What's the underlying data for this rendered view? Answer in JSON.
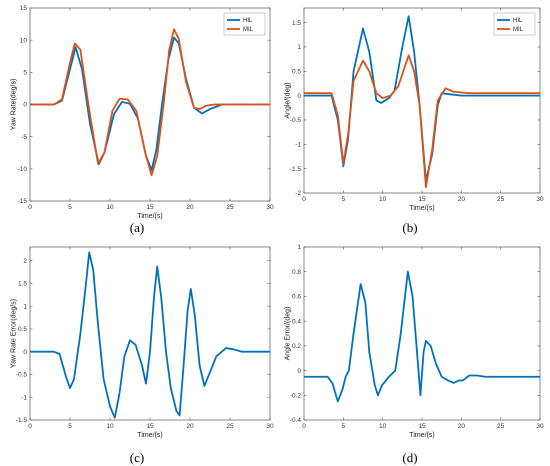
{
  "chart_data": [
    {
      "type": "line",
      "panel_label": "(a)",
      "xlabel": "Time/(s)",
      "ylabel": "Yaw Rate(deg/s)",
      "xlim": [
        0,
        30
      ],
      "ylim": [
        -15,
        15
      ],
      "xticks": [
        "0",
        "5",
        "10",
        "15",
        "20",
        "25",
        "30"
      ],
      "yticks": [
        "-15",
        "-10",
        "-5",
        "0",
        "5",
        "10",
        "15"
      ],
      "legend_position": "top-right",
      "series": [
        {
          "name": "HIL",
          "color": "#0072BD",
          "points": [
            [
              0,
              0
            ],
            [
              3,
              0
            ],
            [
              4,
              0.6
            ],
            [
              5,
              5.5
            ],
            [
              5.7,
              8.9
            ],
            [
              6.5,
              5.5
            ],
            [
              7.5,
              -3
            ],
            [
              8.6,
              -9.3
            ],
            [
              9.3,
              -7.5
            ],
            [
              10.5,
              -1.5
            ],
            [
              11.5,
              0.4
            ],
            [
              12.5,
              0.1
            ],
            [
              13.5,
              -2.2
            ],
            [
              14.5,
              -8
            ],
            [
              15.2,
              -10.2
            ],
            [
              15.8,
              -7
            ],
            [
              16.5,
              0
            ],
            [
              17.3,
              7
            ],
            [
              18,
              10.4
            ],
            [
              18.6,
              9.5
            ],
            [
              19.5,
              4
            ],
            [
              20.5,
              -0.5
            ],
            [
              21.5,
              -1.4
            ],
            [
              22.5,
              -0.7
            ],
            [
              24,
              0
            ],
            [
              30,
              0
            ]
          ]
        },
        {
          "name": "MIL",
          "color": "#D95319",
          "points": [
            [
              0,
              0
            ],
            [
              3,
              0
            ],
            [
              4,
              0.8
            ],
            [
              5,
              6.5
            ],
            [
              5.6,
              9.5
            ],
            [
              6.3,
              8.5
            ],
            [
              7.3,
              0
            ],
            [
              8.5,
              -9.2
            ],
            [
              9.3,
              -7.5
            ],
            [
              10.3,
              -1
            ],
            [
              11.2,
              0.9
            ],
            [
              12.2,
              0.8
            ],
            [
              13.3,
              -1
            ],
            [
              14.4,
              -7.5
            ],
            [
              15.2,
              -11
            ],
            [
              15.9,
              -8
            ],
            [
              16.7,
              0
            ],
            [
              17.4,
              8.5
            ],
            [
              18,
              11.7
            ],
            [
              18.6,
              10.2
            ],
            [
              19.5,
              3.5
            ],
            [
              20.5,
              -0.5
            ],
            [
              21.2,
              -0.7
            ],
            [
              22,
              -0.2
            ],
            [
              23,
              0
            ],
            [
              30,
              0
            ]
          ]
        }
      ]
    },
    {
      "type": "line",
      "panel_label": "(b)",
      "xlabel": "Time/(s)",
      "ylabel": "Angle/(deg)",
      "xlim": [
        0,
        30
      ],
      "ylim": [
        -2,
        1.8
      ],
      "xticks": [
        "0",
        "5",
        "10",
        "15",
        "20",
        "25",
        "30"
      ],
      "yticks": [
        "-2",
        "-1.5",
        "-1",
        "-0.5",
        "0",
        "0.5",
        "1",
        "1.5"
      ],
      "legend_position": "top-right",
      "series": [
        {
          "name": "HIL",
          "color": "#0072BD",
          "points": [
            [
              0,
              0
            ],
            [
              3.5,
              0
            ],
            [
              4.3,
              -0.5
            ],
            [
              5,
              -1.45
            ],
            [
              5.6,
              -0.9
            ],
            [
              6.3,
              0.5
            ],
            [
              7.5,
              1.38
            ],
            [
              8.3,
              0.9
            ],
            [
              9.2,
              -0.1
            ],
            [
              9.8,
              -0.15
            ],
            [
              10.8,
              -0.05
            ],
            [
              11.5,
              0.1
            ],
            [
              12.5,
              1
            ],
            [
              13.3,
              1.63
            ],
            [
              14,
              0.9
            ],
            [
              14.7,
              -0.2
            ],
            [
              15.5,
              -1.75
            ],
            [
              16.3,
              -1.2
            ],
            [
              17,
              -0.2
            ],
            [
              17.5,
              0.05
            ],
            [
              18.5,
              0.03
            ],
            [
              20,
              0
            ],
            [
              30,
              0
            ]
          ]
        },
        {
          "name": "MIL",
          "color": "#D95319",
          "points": [
            [
              0,
              0.05
            ],
            [
              3.5,
              0.05
            ],
            [
              4.3,
              -0.4
            ],
            [
              5,
              -1.4
            ],
            [
              5.6,
              -0.8
            ],
            [
              6.3,
              0.3
            ],
            [
              7.5,
              0.72
            ],
            [
              8.3,
              0.5
            ],
            [
              9.2,
              0.05
            ],
            [
              10,
              -0.05
            ],
            [
              11,
              0
            ],
            [
              12,
              0.2
            ],
            [
              13.3,
              0.83
            ],
            [
              14,
              0.5
            ],
            [
              14.7,
              -0.2
            ],
            [
              15.5,
              -1.88
            ],
            [
              16.3,
              -1.1
            ],
            [
              17,
              -0.1
            ],
            [
              18,
              0.15
            ],
            [
              19,
              0.08
            ],
            [
              21,
              0.05
            ],
            [
              30,
              0.05
            ]
          ]
        }
      ]
    },
    {
      "type": "line",
      "panel_label": "(c)",
      "xlabel": "Time/(s)",
      "ylabel": "Yaw Rate Error(deg/s)",
      "xlim": [
        0,
        30
      ],
      "ylim": [
        -1.5,
        2.3
      ],
      "xticks": [
        "0",
        "5",
        "10",
        "15",
        "20",
        "25",
        "30"
      ],
      "yticks": [
        "-1.5",
        "-1",
        "-0.5",
        "0",
        "0.5",
        "1",
        "1.5",
        "2"
      ],
      "series": [
        {
          "name": "",
          "color": "#0072BD",
          "points": [
            [
              0,
              0
            ],
            [
              3,
              0
            ],
            [
              3.7,
              -0.05
            ],
            [
              4.5,
              -0.55
            ],
            [
              5,
              -0.8
            ],
            [
              5.5,
              -0.6
            ],
            [
              6.3,
              0.4
            ],
            [
              7,
              1.5
            ],
            [
              7.4,
              2.18
            ],
            [
              7.9,
              1.8
            ],
            [
              8.5,
              0.6
            ],
            [
              9.2,
              -0.6
            ],
            [
              10,
              -1.2
            ],
            [
              10.6,
              -1.45
            ],
            [
              11.2,
              -0.9
            ],
            [
              11.8,
              -0.1
            ],
            [
              12.5,
              0.25
            ],
            [
              13.2,
              0.15
            ],
            [
              14,
              -0.3
            ],
            [
              14.5,
              -0.7
            ],
            [
              15,
              0
            ],
            [
              15.5,
              1.2
            ],
            [
              15.9,
              1.87
            ],
            [
              16.4,
              1.2
            ],
            [
              17,
              0
            ],
            [
              17.6,
              -0.8
            ],
            [
              18.3,
              -1.3
            ],
            [
              18.7,
              -1.4
            ],
            [
              19.2,
              -0.3
            ],
            [
              19.7,
              0.9
            ],
            [
              20.1,
              1.38
            ],
            [
              20.6,
              0.8
            ],
            [
              21.2,
              -0.3
            ],
            [
              21.8,
              -0.75
            ],
            [
              22.5,
              -0.45
            ],
            [
              23.3,
              -0.1
            ],
            [
              24.5,
              0.08
            ],
            [
              25.5,
              0.05
            ],
            [
              26.5,
              0
            ],
            [
              30,
              0
            ]
          ]
        }
      ]
    },
    {
      "type": "line",
      "panel_label": "(d)",
      "xlabel": "Time/(s)",
      "ylabel": "Angle Error/(deg)",
      "xlim": [
        0,
        30
      ],
      "ylim": [
        -0.4,
        1
      ],
      "xticks": [
        "0",
        "5",
        "10",
        "15",
        "20",
        "25",
        "30"
      ],
      "yticks": [
        "-0.4",
        "-0.2",
        "0",
        "0.2",
        "0.4",
        "0.6",
        "0.8",
        "1"
      ],
      "series": [
        {
          "name": "",
          "color": "#0072BD",
          "points": [
            [
              0,
              -0.05
            ],
            [
              3,
              -0.05
            ],
            [
              3.6,
              -0.1
            ],
            [
              4.3,
              -0.25
            ],
            [
              4.9,
              -0.15
            ],
            [
              5.3,
              -0.05
            ],
            [
              5.7,
              0
            ],
            [
              6.3,
              0.3
            ],
            [
              7.2,
              0.7
            ],
            [
              7.8,
              0.55
            ],
            [
              8.3,
              0.15
            ],
            [
              9,
              -0.12
            ],
            [
              9.4,
              -0.2
            ],
            [
              9.9,
              -0.12
            ],
            [
              10.8,
              -0.05
            ],
            [
              11.6,
              0
            ],
            [
              12.3,
              0.3
            ],
            [
              13.2,
              0.8
            ],
            [
              13.8,
              0.6
            ],
            [
              14.3,
              0.2
            ],
            [
              14.8,
              -0.2
            ],
            [
              15.2,
              0.15
            ],
            [
              15.5,
              0.24
            ],
            [
              16.1,
              0.2
            ],
            [
              16.8,
              0.05
            ],
            [
              17.5,
              -0.05
            ],
            [
              18.3,
              -0.08
            ],
            [
              19,
              -0.1
            ],
            [
              19.7,
              -0.08
            ],
            [
              20.2,
              -0.08
            ],
            [
              21,
              -0.04
            ],
            [
              22,
              -0.04
            ],
            [
              23,
              -0.05
            ],
            [
              30,
              -0.05
            ]
          ]
        }
      ]
    }
  ]
}
